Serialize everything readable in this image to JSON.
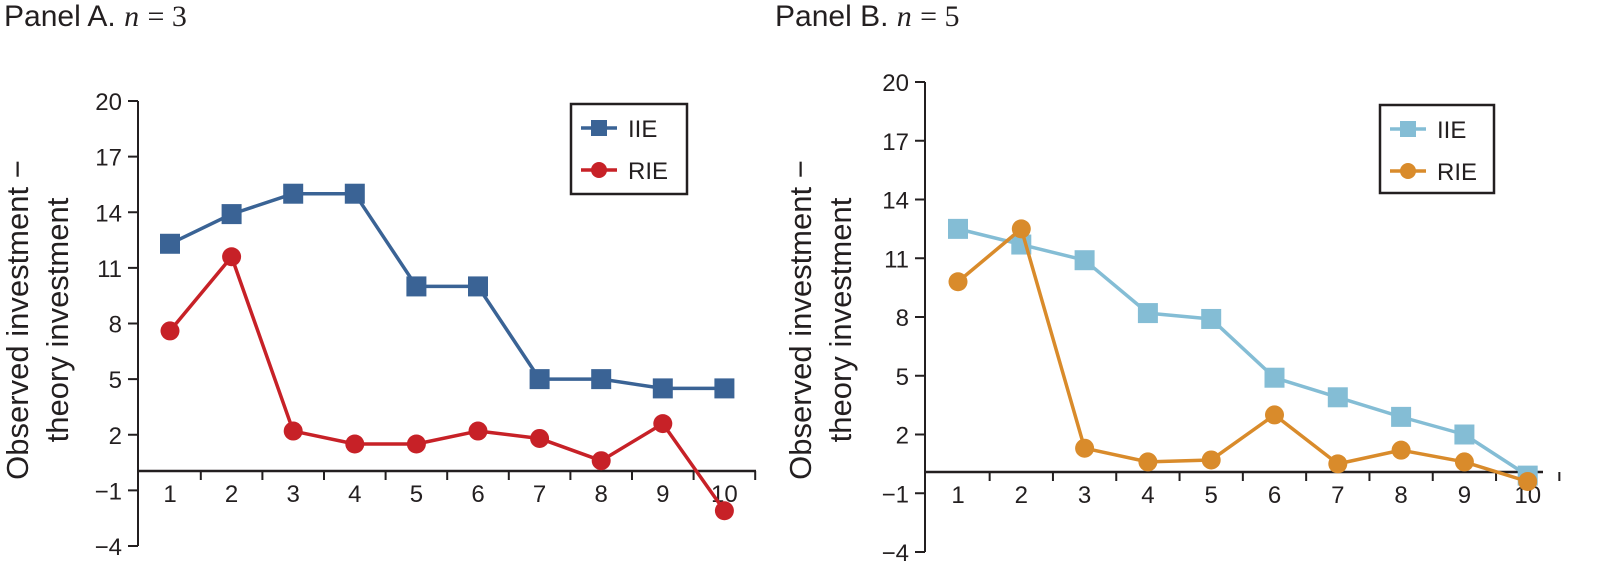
{
  "chart_data": [
    {
      "type": "line",
      "panel_label": "Panel A.",
      "n_label": "n",
      "n_eq": "= 3",
      "ylabel_line1": "Observed investment −",
      "ylabel_line2": "theory investment",
      "xlabel": "",
      "categories": [
        "1",
        "2",
        "3",
        "4",
        "5",
        "6",
        "7",
        "8",
        "9",
        "10"
      ],
      "ylim": [
        -4,
        20
      ],
      "yticks": [
        "20",
        "17",
        "14",
        "11",
        "8",
        "5",
        "2",
        "−1",
        "−4"
      ],
      "ytick_values": [
        20,
        17,
        14,
        11,
        8,
        5,
        2,
        -1,
        -4
      ],
      "grid": false,
      "legend_position": "top-right",
      "series": [
        {
          "name": "IIE",
          "marker": "square",
          "color": "#3a6395",
          "values": [
            12.3,
            13.9,
            15.0,
            15.0,
            10.0,
            10.0,
            5.0,
            5.0,
            4.5,
            4.5
          ]
        },
        {
          "name": "RIE",
          "marker": "circle",
          "color": "#c72127",
          "values": [
            7.6,
            11.6,
            2.2,
            1.5,
            1.5,
            2.2,
            1.8,
            0.6,
            2.6,
            -2.1
          ]
        }
      ]
    },
    {
      "type": "line",
      "panel_label": "Panel B.",
      "n_label": "n",
      "n_eq": "= 5",
      "ylabel_line1": "Observed investment −",
      "ylabel_line2": "theory investment",
      "xlabel": "",
      "categories": [
        "1",
        "2",
        "3",
        "4",
        "5",
        "6",
        "7",
        "8",
        "9",
        "10"
      ],
      "ylim": [
        -4,
        20
      ],
      "yticks": [
        "20",
        "17",
        "14",
        "11",
        "8",
        "5",
        "2",
        "−1",
        "−4"
      ],
      "ytick_values": [
        20,
        17,
        14,
        11,
        8,
        5,
        2,
        -1,
        -4
      ],
      "grid": false,
      "legend_position": "top-right",
      "series": [
        {
          "name": "IIE",
          "marker": "square",
          "color": "#84bdd5",
          "values": [
            12.5,
            11.7,
            10.9,
            8.2,
            7.9,
            4.9,
            3.9,
            2.9,
            2.0,
            -0.1
          ]
        },
        {
          "name": "RIE",
          "marker": "circle",
          "color": "#d98b2b",
          "values": [
            9.8,
            12.5,
            1.3,
            0.6,
            0.7,
            3.0,
            0.5,
            1.2,
            0.6,
            -0.4
          ]
        }
      ]
    }
  ]
}
